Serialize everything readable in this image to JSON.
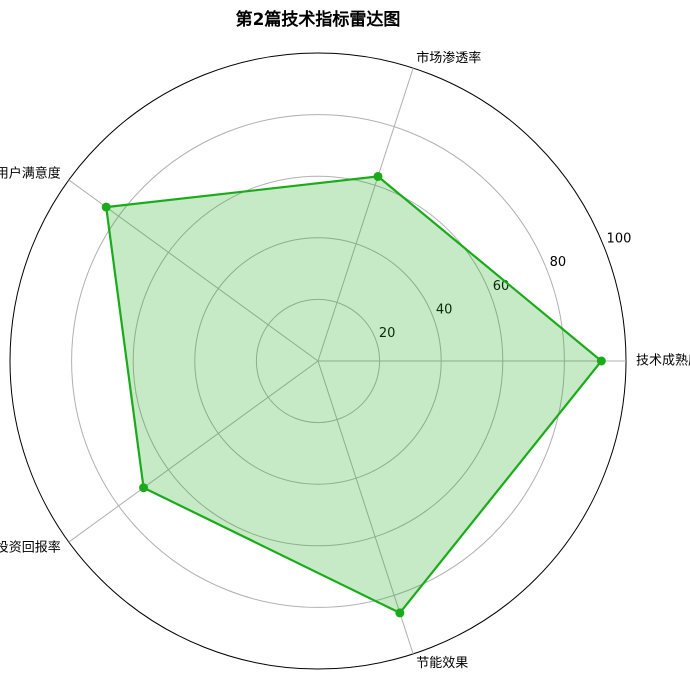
{
  "chart_data": {
    "type": "radar",
    "title": "第2篇技术指标雷达图",
    "categories": [
      "技术成熟度",
      "市场渗透率",
      "用户满意度",
      "投资回报率",
      "节能效果"
    ],
    "values": [
      92,
      63,
      85,
      70,
      86
    ],
    "color": "#1aab1a",
    "ylim": [
      0,
      100
    ],
    "yticks": [
      20,
      40,
      60,
      80,
      100
    ],
    "grid": true
  }
}
